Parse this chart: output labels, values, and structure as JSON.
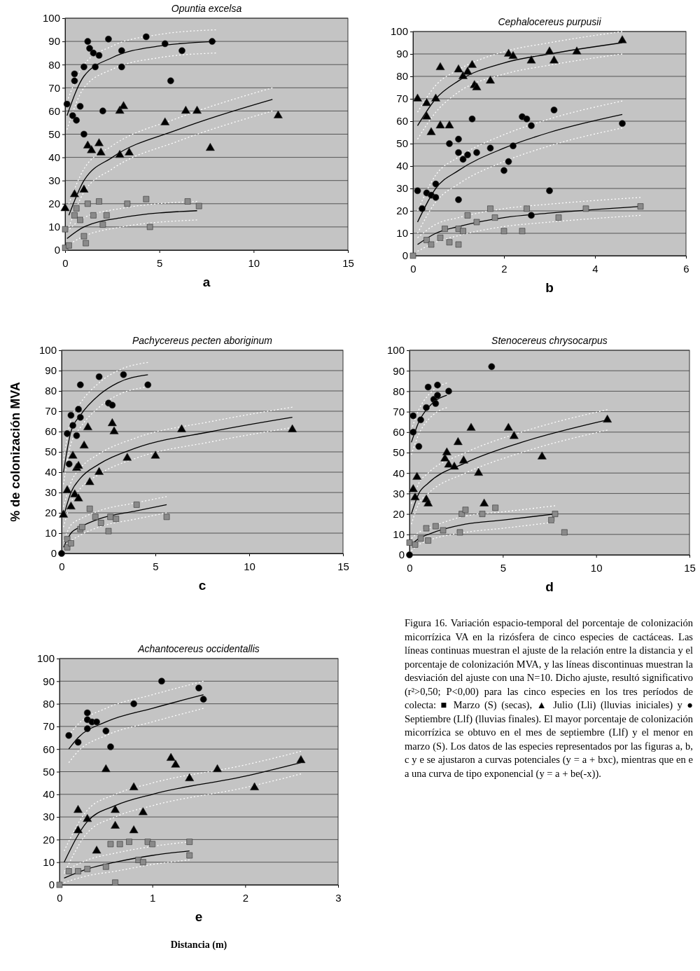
{
  "chart_data": [
    {
      "type": "scatter",
      "title": "Opuntia excelsa",
      "xlabel": "a",
      "xlim": [
        0,
        15
      ],
      "xticks": [
        0,
        5,
        10,
        15
      ],
      "ylim": [
        0,
        100
      ],
      "yticks": [
        0,
        10,
        20,
        30,
        40,
        50,
        60,
        70,
        80,
        90,
        100
      ],
      "grid": "y",
      "series": [
        {
          "color": "#000000",
          "marker": "circle",
          "x": [
            0.1,
            0.4,
            0.5,
            0.5,
            0.6,
            0.8,
            1.0,
            1.0,
            1.2,
            1.3,
            1.5,
            1.6,
            1.8,
            2.0,
            2.3,
            3.0,
            3.0,
            4.3,
            5.3,
            5.6,
            6.2,
            7.8
          ],
          "values": [
            63,
            58,
            76,
            73,
            56,
            62,
            50,
            79,
            90,
            87,
            85,
            79,
            84,
            60,
            91,
            86,
            79,
            92,
            89,
            73,
            86,
            90
          ]
        },
        {
          "color": "#000000",
          "marker": "triangle",
          "x": [
            0,
            0.5,
            1.0,
            1.2,
            1.4,
            1.8,
            1.9,
            2.9,
            3.1,
            2.9,
            3.4,
            5.3,
            6.4,
            7.0,
            7.7,
            11.3
          ],
          "values": [
            18,
            24,
            26,
            45,
            43,
            46,
            42,
            60,
            62,
            41,
            42,
            55,
            60,
            60,
            44,
            58
          ]
        },
        {
          "color": "#8a8a8a",
          "marker": "square",
          "x": [
            0,
            0,
            0.2,
            0.5,
            0.6,
            0.8,
            1.0,
            1.1,
            1.2,
            1.5,
            1.8,
            2.0,
            2.2,
            3.3,
            4.3,
            4.5,
            6.5,
            7.1
          ],
          "values": [
            1,
            9,
            2,
            15,
            18,
            13,
            6,
            3,
            20,
            15,
            21,
            11,
            15,
            20,
            22,
            10,
            21,
            19
          ]
        },
        {
          "type": "line",
          "color": "#000000",
          "marker": "none",
          "x": [
            0.1,
            1,
            2.5,
            5,
            8
          ],
          "values": [
            58,
            75,
            83,
            88,
            90
          ]
        },
        {
          "type": "line",
          "color": "#ffffff",
          "line_style": "dotted",
          "marker": "none",
          "x": [
            0.1,
            1,
            2.5,
            5,
            8
          ],
          "values": [
            52,
            70,
            78,
            83,
            85
          ]
        },
        {
          "type": "line",
          "color": "#ffffff",
          "line_style": "dotted",
          "marker": "none",
          "x": [
            0.1,
            1,
            2.5,
            5,
            8
          ],
          "values": [
            64,
            80,
            88,
            93,
            95
          ]
        },
        {
          "type": "line",
          "color": "#000000",
          "marker": "none",
          "x": [
            0.2,
            1,
            2.5,
            6,
            11
          ],
          "values": [
            15,
            30,
            40,
            52,
            65
          ]
        },
        {
          "type": "line",
          "color": "#ffffff",
          "line_style": "dotted",
          "marker": "none",
          "x": [
            0.2,
            1,
            2.5,
            6,
            11
          ],
          "values": [
            10,
            25,
            35,
            47,
            60
          ]
        },
        {
          "type": "line",
          "color": "#ffffff",
          "line_style": "dotted",
          "marker": "none",
          "x": [
            0.2,
            1,
            2.5,
            6,
            11
          ],
          "values": [
            20,
            35,
            45,
            57,
            70
          ]
        },
        {
          "type": "line",
          "color": "#000000",
          "marker": "none",
          "x": [
            0.1,
            1,
            3,
            7
          ],
          "values": [
            5,
            10,
            14,
            17
          ]
        },
        {
          "type": "line",
          "color": "#ffffff",
          "line_style": "dotted",
          "marker": "none",
          "x": [
            0.1,
            1,
            3,
            7
          ],
          "values": [
            2,
            6,
            10,
            13
          ]
        },
        {
          "type": "line",
          "color": "#ffffff",
          "line_style": "dotted",
          "marker": "none",
          "x": [
            0.1,
            1,
            3,
            7
          ],
          "values": [
            8,
            14,
            18,
            21
          ]
        }
      ]
    },
    {
      "type": "scatter",
      "title": "Cephalocereus purpusii",
      "xlabel": "b",
      "xlim": [
        0,
        6
      ],
      "xticks": [
        0,
        2,
        4,
        6
      ],
      "ylim": [
        0,
        100
      ],
      "yticks": [
        0,
        10,
        20,
        30,
        40,
        50,
        60,
        70,
        80,
        90,
        100
      ],
      "grid": "y",
      "series": [
        {
          "color": "#000000",
          "marker": "triangle",
          "x": [
            0.1,
            0.3,
            0.3,
            0.4,
            0.5,
            0.6,
            0.6,
            0.8,
            1.0,
            1.1,
            1.2,
            1.3,
            1.35,
            1.4,
            1.7,
            2.1,
            2.2,
            2.6,
            3.0,
            3.1,
            3.6,
            4.6
          ],
          "values": [
            70,
            68,
            62,
            55,
            70,
            84,
            58,
            58,
            83,
            80,
            82,
            85,
            76,
            75,
            78,
            90,
            89,
            87,
            91,
            87,
            91,
            96
          ]
        },
        {
          "color": "#000000",
          "marker": "circle",
          "x": [
            0.1,
            0.2,
            0.3,
            0.4,
            0.5,
            0.5,
            0.8,
            1.0,
            1.0,
            1.1,
            1.2,
            1.3,
            1.4,
            1.7,
            2.0,
            2.1,
            2.2,
            2.4,
            2.5,
            2.6,
            2.6,
            3.0,
            3.1,
            4.6,
            1.0
          ],
          "values": [
            29,
            21,
            28,
            27,
            26,
            32,
            50,
            52,
            46,
            43,
            45,
            61,
            46,
            48,
            38,
            42,
            49,
            62,
            61,
            58,
            18,
            29,
            65,
            59,
            25
          ]
        },
        {
          "color": "#8a8a8a",
          "marker": "square",
          "x": [
            0,
            0.3,
            0.4,
            0.6,
            0.7,
            0.8,
            1.0,
            1.0,
            1.1,
            1.2,
            1.4,
            1.7,
            1.8,
            2.0,
            2.4,
            2.5,
            3.2,
            3.8,
            5.0
          ],
          "values": [
            0,
            7,
            5,
            8,
            12,
            6,
            12,
            5,
            11,
            18,
            15,
            21,
            17,
            11,
            11,
            21,
            17,
            21,
            22
          ]
        },
        {
          "type": "line",
          "color": "#000000",
          "marker": "none",
          "x": [
            0.1,
            0.5,
            1,
            2,
            3,
            4.6
          ],
          "values": [
            58,
            70,
            78,
            86,
            90,
            95
          ]
        },
        {
          "type": "line",
          "color": "#ffffff",
          "line_style": "dotted",
          "marker": "none",
          "x": [
            0.1,
            0.5,
            1,
            2,
            3,
            4.6
          ],
          "values": [
            52,
            64,
            73,
            81,
            85,
            90
          ]
        },
        {
          "type": "line",
          "color": "#ffffff",
          "line_style": "dotted",
          "marker": "none",
          "x": [
            0.1,
            0.5,
            1,
            2,
            3,
            4.6
          ],
          "values": [
            64,
            76,
            83,
            91,
            95,
            100
          ]
        },
        {
          "type": "line",
          "color": "#000000",
          "marker": "none",
          "x": [
            0.1,
            0.5,
            1,
            2,
            3,
            4.6
          ],
          "values": [
            15,
            30,
            38,
            48,
            55,
            63
          ]
        },
        {
          "type": "line",
          "color": "#ffffff",
          "line_style": "dotted",
          "marker": "none",
          "x": [
            0.1,
            0.5,
            1,
            2,
            3,
            4.6
          ],
          "values": [
            10,
            24,
            32,
            42,
            49,
            57
          ]
        },
        {
          "type": "line",
          "color": "#ffffff",
          "line_style": "dotted",
          "marker": "none",
          "x": [
            0.1,
            0.5,
            1,
            2,
            3,
            4.6
          ],
          "values": [
            20,
            36,
            44,
            54,
            61,
            69
          ]
        },
        {
          "type": "line",
          "color": "#000000",
          "marker": "none",
          "x": [
            0.1,
            0.5,
            1,
            2,
            3,
            5
          ],
          "values": [
            5,
            10,
            13,
            17,
            19,
            22
          ]
        },
        {
          "type": "line",
          "color": "#ffffff",
          "line_style": "dotted",
          "marker": "none",
          "x": [
            0.1,
            0.5,
            1,
            2,
            3,
            5
          ],
          "values": [
            2,
            6,
            9,
            13,
            15,
            18
          ]
        },
        {
          "type": "line",
          "color": "#ffffff",
          "line_style": "dotted",
          "marker": "none",
          "x": [
            0.1,
            0.5,
            1,
            2,
            3,
            5
          ],
          "values": [
            8,
            14,
            17,
            21,
            23,
            26
          ]
        }
      ]
    },
    {
      "type": "scatter",
      "title": "Pachycereus pecten aboriginum",
      "xlabel": "c",
      "ylabel": "% de colonización MVA",
      "xlim": [
        0,
        15
      ],
      "xticks": [
        0,
        5,
        10,
        15
      ],
      "ylim": [
        0,
        100
      ],
      "yticks": [
        0,
        10,
        20,
        30,
        40,
        50,
        60,
        70,
        80,
        90,
        100
      ],
      "grid": "y",
      "series": [
        {
          "color": "#000000",
          "marker": "circle",
          "x": [
            0,
            0.3,
            0.4,
            0.5,
            0.6,
            0.8,
            0.9,
            1.0,
            1.0,
            2.0,
            2.5,
            2.7,
            3.3,
            4.6
          ],
          "values": [
            0,
            59,
            44,
            68,
            63,
            58,
            71,
            83,
            67,
            87,
            74,
            73,
            88,
            83
          ]
        },
        {
          "color": "#000000",
          "marker": "triangle",
          "x": [
            0.1,
            0.3,
            0.5,
            0.6,
            0.7,
            0.8,
            0.9,
            1.2,
            1.4,
            1.5,
            2.0,
            2.7,
            2.8,
            3.5,
            5.0,
            6.4,
            12.3,
            0.9
          ],
          "values": [
            19,
            31,
            23,
            48,
            29,
            42,
            27,
            53,
            62,
            35,
            40,
            64,
            60,
            47,
            48,
            61,
            61,
            43
          ]
        },
        {
          "color": "#8a8a8a",
          "marker": "square",
          "x": [
            0.3,
            0.3,
            0.5,
            1.0,
            1.1,
            1.5,
            1.8,
            2.1,
            2.5,
            2.6,
            2.9,
            4.0,
            5.6
          ],
          "values": [
            3,
            7,
            5,
            12,
            13,
            22,
            18,
            15,
            11,
            18,
            17,
            24,
            18
          ]
        },
        {
          "type": "line",
          "color": "#000000",
          "marker": "none",
          "x": [
            0.1,
            0.5,
            1,
            2,
            3,
            4.6
          ],
          "values": [
            40,
            60,
            68,
            78,
            84,
            88
          ]
        },
        {
          "type": "line",
          "color": "#ffffff",
          "line_style": "dotted",
          "marker": "none",
          "x": [
            0.1,
            0.5,
            1,
            2,
            3,
            4.6
          ],
          "values": [
            34,
            54,
            62,
            72,
            78,
            82
          ]
        },
        {
          "type": "line",
          "color": "#ffffff",
          "line_style": "dotted",
          "marker": "none",
          "x": [
            0.1,
            0.5,
            1,
            2,
            3,
            4.6
          ],
          "values": [
            46,
            66,
            74,
            84,
            90,
            94
          ]
        },
        {
          "type": "line",
          "color": "#000000",
          "marker": "none",
          "x": [
            0.1,
            0.5,
            1,
            2,
            4,
            8,
            12.3
          ],
          "values": [
            18,
            30,
            37,
            44,
            52,
            60,
            67
          ]
        },
        {
          "type": "line",
          "color": "#ffffff",
          "line_style": "dotted",
          "marker": "none",
          "x": [
            0.1,
            0.5,
            1,
            2,
            4,
            8,
            12.3
          ],
          "values": [
            13,
            25,
            32,
            39,
            47,
            55,
            62
          ]
        },
        {
          "type": "line",
          "color": "#ffffff",
          "line_style": "dotted",
          "marker": "none",
          "x": [
            0.1,
            0.5,
            1,
            2,
            4,
            8,
            12.3
          ],
          "values": [
            23,
            35,
            42,
            49,
            57,
            65,
            72
          ]
        },
        {
          "type": "line",
          "color": "#000000",
          "marker": "none",
          "x": [
            0.1,
            0.5,
            1,
            2,
            4,
            5.6
          ],
          "values": [
            3,
            10,
            13,
            17,
            21,
            24
          ]
        },
        {
          "type": "line",
          "color": "#ffffff",
          "line_style": "dotted",
          "marker": "none",
          "x": [
            0.1,
            0.5,
            1,
            2,
            4,
            5.6
          ],
          "values": [
            1,
            6,
            9,
            13,
            17,
            20
          ]
        },
        {
          "type": "line",
          "color": "#ffffff",
          "line_style": "dotted",
          "marker": "none",
          "x": [
            0.1,
            0.5,
            1,
            2,
            4,
            5.6
          ],
          "values": [
            6,
            14,
            17,
            21,
            25,
            28
          ]
        }
      ]
    },
    {
      "type": "scatter",
      "title": "Stenocereus chrysocarpus",
      "xlabel": "d",
      "xlim": [
        0,
        15
      ],
      "xticks": [
        0,
        5,
        10,
        15
      ],
      "ylim": [
        0,
        100
      ],
      "yticks": [
        0,
        10,
        20,
        30,
        40,
        50,
        60,
        70,
        80,
        90,
        100
      ],
      "grid": "y",
      "series": [
        {
          "color": "#000000",
          "marker": "circle",
          "x": [
            0,
            0.2,
            0.2,
            0.5,
            0.6,
            0.9,
            1.0,
            1.3,
            1.4,
            1.5,
            1.5,
            2.1,
            4.4
          ],
          "values": [
            0,
            60,
            68,
            53,
            66,
            72,
            82,
            76,
            74,
            83,
            78,
            80,
            92
          ]
        },
        {
          "color": "#000000",
          "marker": "triangle",
          "x": [
            0.2,
            0.3,
            0.4,
            0.9,
            1.0,
            1.9,
            2.0,
            2.1,
            2.4,
            2.6,
            2.9,
            3.3,
            3.7,
            4.0,
            5.3,
            5.6,
            7.1,
            10.6
          ],
          "values": [
            32,
            28,
            38,
            27,
            25,
            47,
            50,
            44,
            43,
            55,
            46,
            62,
            40,
            25,
            62,
            58,
            48,
            66
          ]
        },
        {
          "color": "#8a8a8a",
          "marker": "square",
          "x": [
            0,
            0.3,
            0.6,
            0.9,
            1.0,
            1.4,
            1.8,
            2.7,
            2.8,
            3.0,
            3.9,
            4.6,
            7.6,
            7.8,
            8.3
          ],
          "values": [
            6,
            5,
            8,
            13,
            7,
            14,
            12,
            11,
            20,
            22,
            20,
            23,
            17,
            20,
            11
          ]
        },
        {
          "type": "line",
          "color": "#000000",
          "marker": "none",
          "x": [
            0.1,
            0.5,
            1,
            1.5,
            2
          ],
          "values": [
            55,
            65,
            72,
            76,
            78
          ]
        },
        {
          "type": "line",
          "color": "#ffffff",
          "line_style": "dotted",
          "marker": "none",
          "x": [
            0.1,
            0.5,
            1,
            1.5,
            2
          ],
          "values": [
            49,
            59,
            66,
            70,
            72
          ]
        },
        {
          "type": "line",
          "color": "#ffffff",
          "line_style": "dotted",
          "marker": "none",
          "x": [
            0.1,
            0.5,
            1,
            1.5,
            2
          ],
          "values": [
            61,
            71,
            78,
            82,
            84
          ]
        },
        {
          "type": "line",
          "color": "#000000",
          "marker": "none",
          "x": [
            0.1,
            0.5,
            1,
            3,
            6,
            10.6
          ],
          "values": [
            20,
            30,
            35,
            45,
            55,
            66
          ]
        },
        {
          "type": "line",
          "color": "#ffffff",
          "line_style": "dotted",
          "marker": "none",
          "x": [
            0.1,
            0.5,
            1,
            3,
            6,
            10.6
          ],
          "values": [
            15,
            25,
            30,
            40,
            50,
            61
          ]
        },
        {
          "type": "line",
          "color": "#ffffff",
          "line_style": "dotted",
          "marker": "none",
          "x": [
            0.1,
            0.5,
            1,
            3,
            6,
            10.6
          ],
          "values": [
            25,
            35,
            40,
            50,
            60,
            71
          ]
        },
        {
          "type": "line",
          "color": "#000000",
          "marker": "none",
          "x": [
            0.1,
            0.5,
            1,
            3,
            5,
            7.8
          ],
          "values": [
            5,
            8,
            10,
            15,
            17,
            20
          ]
        },
        {
          "type": "line",
          "color": "#ffffff",
          "line_style": "dotted",
          "marker": "none",
          "x": [
            0.1,
            0.5,
            1,
            3,
            5,
            7.8
          ],
          "values": [
            2,
            5,
            7,
            11,
            13,
            16
          ]
        },
        {
          "type": "line",
          "color": "#ffffff",
          "line_style": "dotted",
          "marker": "none",
          "x": [
            0.1,
            0.5,
            1,
            3,
            5,
            7.8
          ],
          "values": [
            8,
            11,
            13,
            19,
            21,
            24
          ]
        }
      ]
    },
    {
      "type": "scatter",
      "title": "Achantocereus occidentallis",
      "xlabel": "e",
      "annotations": [
        "Distancia (m)"
      ],
      "xlim": [
        0,
        3
      ],
      "xticks": [
        0,
        1,
        2,
        3
      ],
      "ylim": [
        0,
        100
      ],
      "yticks": [
        0,
        10,
        20,
        30,
        40,
        50,
        60,
        70,
        80,
        90,
        100
      ],
      "grid": "y",
      "series": [
        {
          "color": "#000000",
          "marker": "circle",
          "x": [
            0.1,
            0.2,
            0.3,
            0.3,
            0.35,
            0.4,
            0.3,
            0.5,
            0.55,
            0.8,
            1.1,
            1.5,
            1.55
          ],
          "values": [
            66,
            63,
            76,
            73,
            72,
            72,
            69,
            68,
            61,
            80,
            90,
            87,
            82
          ]
        },
        {
          "color": "#000000",
          "marker": "triangle",
          "x": [
            0.2,
            0.2,
            0.3,
            0.4,
            0.5,
            0.6,
            0.6,
            0.8,
            0.8,
            0.9,
            1.2,
            1.25,
            1.4,
            1.7,
            2.1,
            2.6
          ],
          "values": [
            33,
            24,
            29,
            15,
            51,
            33,
            26,
            24,
            43,
            32,
            56,
            53,
            47,
            51,
            43,
            55
          ]
        },
        {
          "color": "#8a8a8a",
          "marker": "square",
          "x": [
            0,
            0.1,
            0.2,
            0.3,
            0.5,
            0.55,
            0.6,
            0.65,
            0.75,
            0.85,
            0.9,
            0.95,
            1.0,
            1.4,
            1.4
          ],
          "values": [
            0,
            6,
            6,
            7,
            8,
            18,
            1,
            18,
            19,
            11,
            10,
            19,
            18,
            19,
            13
          ]
        },
        {
          "type": "line",
          "color": "#000000",
          "marker": "none",
          "x": [
            0.1,
            0.2,
            0.5,
            1,
            1.55
          ],
          "values": [
            60,
            65,
            72,
            78,
            84
          ]
        },
        {
          "type": "line",
          "color": "#ffffff",
          "line_style": "dotted",
          "marker": "none",
          "x": [
            0.1,
            0.2,
            0.5,
            1,
            1.55
          ],
          "values": [
            54,
            59,
            66,
            72,
            78
          ]
        },
        {
          "type": "line",
          "color": "#ffffff",
          "line_style": "dotted",
          "marker": "none",
          "x": [
            0.1,
            0.2,
            0.5,
            1,
            1.55
          ],
          "values": [
            66,
            71,
            78,
            84,
            90
          ]
        },
        {
          "type": "line",
          "color": "#000000",
          "marker": "none",
          "x": [
            0.05,
            0.3,
            0.6,
            1,
            2,
            2.6
          ],
          "values": [
            10,
            28,
            35,
            40,
            48,
            54
          ]
        },
        {
          "type": "line",
          "color": "#ffffff",
          "line_style": "dotted",
          "marker": "none",
          "x": [
            0.05,
            0.3,
            0.6,
            1,
            2,
            2.6
          ],
          "values": [
            5,
            23,
            30,
            35,
            43,
            49
          ]
        },
        {
          "type": "line",
          "color": "#ffffff",
          "line_style": "dotted",
          "marker": "none",
          "x": [
            0.05,
            0.3,
            0.6,
            1,
            2,
            2.6
          ],
          "values": [
            15,
            33,
            40,
            45,
            53,
            59
          ]
        },
        {
          "type": "line",
          "color": "#000000",
          "marker": "none",
          "x": [
            0.05,
            0.3,
            0.6,
            1,
            1.4
          ],
          "values": [
            3,
            7,
            10,
            13,
            15
          ]
        },
        {
          "type": "line",
          "color": "#ffffff",
          "line_style": "dotted",
          "marker": "none",
          "x": [
            0.05,
            0.3,
            0.6,
            1,
            1.4
          ],
          "values": [
            1,
            4,
            6,
            9,
            11
          ]
        },
        {
          "type": "line",
          "color": "#ffffff",
          "line_style": "dotted",
          "marker": "none",
          "x": [
            0.05,
            0.3,
            0.6,
            1,
            1.4
          ],
          "values": [
            6,
            11,
            14,
            17,
            19
          ]
        }
      ]
    },
    {
      "type": "other",
      "annotations": [
        "Figura 16. Variación espacio-temporal del porcentaje de colonización micorrízica VA en la rizósfera de cinco especies de cactáceas. Las líneas continuas muestran el ajuste de la relación entre la distancia y el porcentaje de colonización MVA, y las líneas discontinuas muestran la desviación del ajuste con una N=10. Dicho ajuste, resultó significativo (r²>0,50; P<0,00) para las cinco especies en los tres períodos de colecta: ■ Marzo (S) (secas), ▲ Julio (Lli) (lluvias iniciales) y ● Septiembre (Llf) (lluvias finales). El mayor porcentaje de colonización micorrízica se obtuvo en el mes de septiembre (Llf) y el menor en marzo (S). Los datos de las especies representados por las figuras a, b, c y e se ajustaron a curvas potenciales (y = a + bxc), mientras que en e a una curva de tipo exponencial (y = a + be(-x))."
      ]
    }
  ]
}
